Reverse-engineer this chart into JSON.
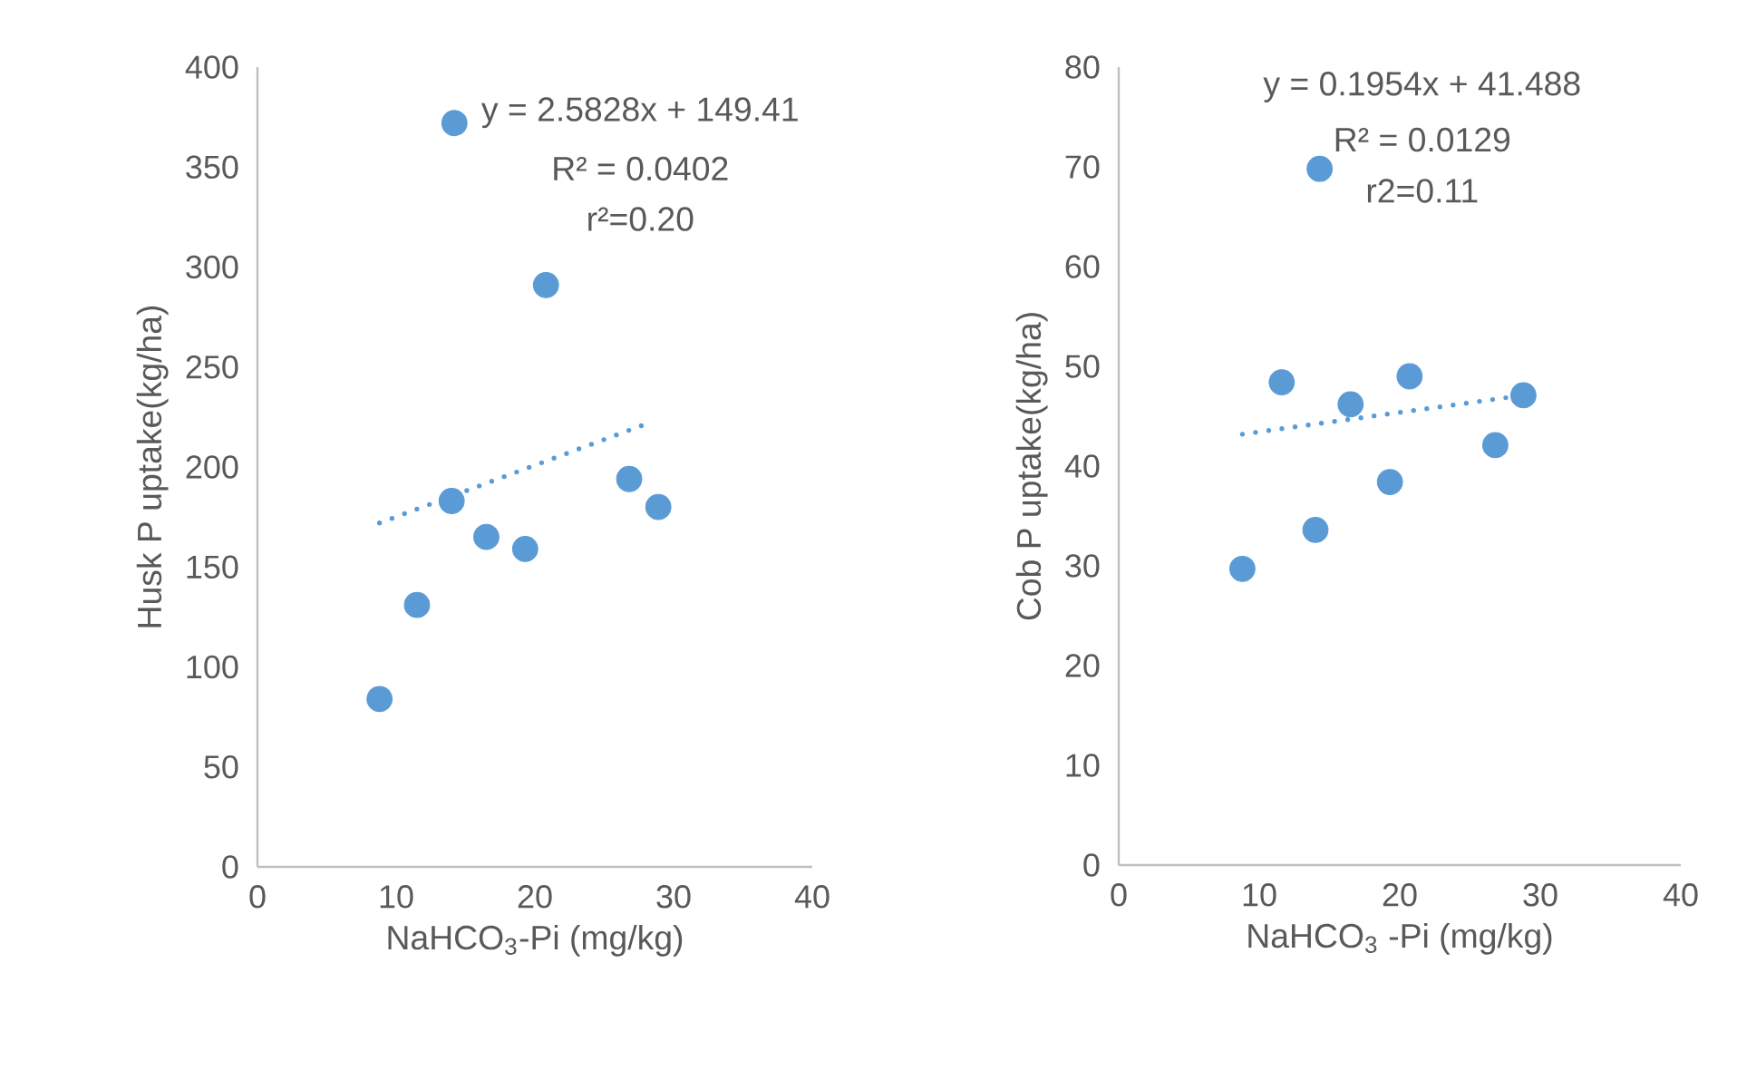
{
  "chart_data": [
    {
      "type": "scatter",
      "xlabel": "NaHCO$_{3}$-Pi (mg/kg)",
      "ylabel": "Husk P uptake(kg/ha)",
      "annotations": [
        "y = 2.5828x + 149.41",
        "R² = 0.0402",
        "r²=0.20"
      ],
      "grid": false,
      "xlim": [
        0,
        40
      ],
      "xticks": [
        0,
        10,
        20,
        30,
        40
      ],
      "ylim": [
        0,
        400
      ],
      "yticks": [
        0,
        50,
        100,
        150,
        200,
        250,
        300,
        350,
        400
      ],
      "series": [
        {
          "color": "#5b9bd5",
          "marker": "circle",
          "x": [
            8.8,
            11.5,
            14.0,
            14.2,
            16.5,
            19.3,
            20.8,
            26.8,
            28.9
          ],
          "values": [
            84,
            131,
            183,
            372,
            165,
            159,
            291,
            194,
            180
          ]
        },
        {
          "type": "line",
          "line_style": "dotted",
          "marker": "none",
          "color": "#5b9bd5",
          "x": [
            8.8,
            28.2
          ],
          "values": [
            172,
            222
          ]
        }
      ]
    },
    {
      "type": "scatter",
      "xlabel": "NaHCO$_{3}$ -Pi (mg/kg)",
      "ylabel": "Cob P uptake(kg/ha)",
      "annotations": [
        "y = 0.1954x + 41.488",
        "R² = 0.0129",
        "r2=0.11"
      ],
      "grid": false,
      "xlim": [
        0,
        40
      ],
      "xticks": [
        0,
        10,
        20,
        30,
        40
      ],
      "ylim": [
        0,
        80
      ],
      "yticks": [
        0,
        10,
        20,
        30,
        40,
        50,
        60,
        70,
        80
      ],
      "series": [
        {
          "color": "#5b9bd5",
          "marker": "circle",
          "x": [
            8.8,
            11.6,
            14.0,
            14.3,
            16.5,
            19.3,
            20.7,
            26.8,
            28.8
          ],
          "values": [
            29.7,
            48.4,
            33.6,
            69.8,
            46.2,
            38.4,
            49.0,
            42.1,
            47.1
          ]
        },
        {
          "type": "line",
          "line_style": "dotted",
          "marker": "none",
          "color": "#5b9bd5",
          "x": [
            8.8,
            28.8
          ],
          "values": [
            43.2,
            47.1
          ]
        }
      ]
    }
  ]
}
